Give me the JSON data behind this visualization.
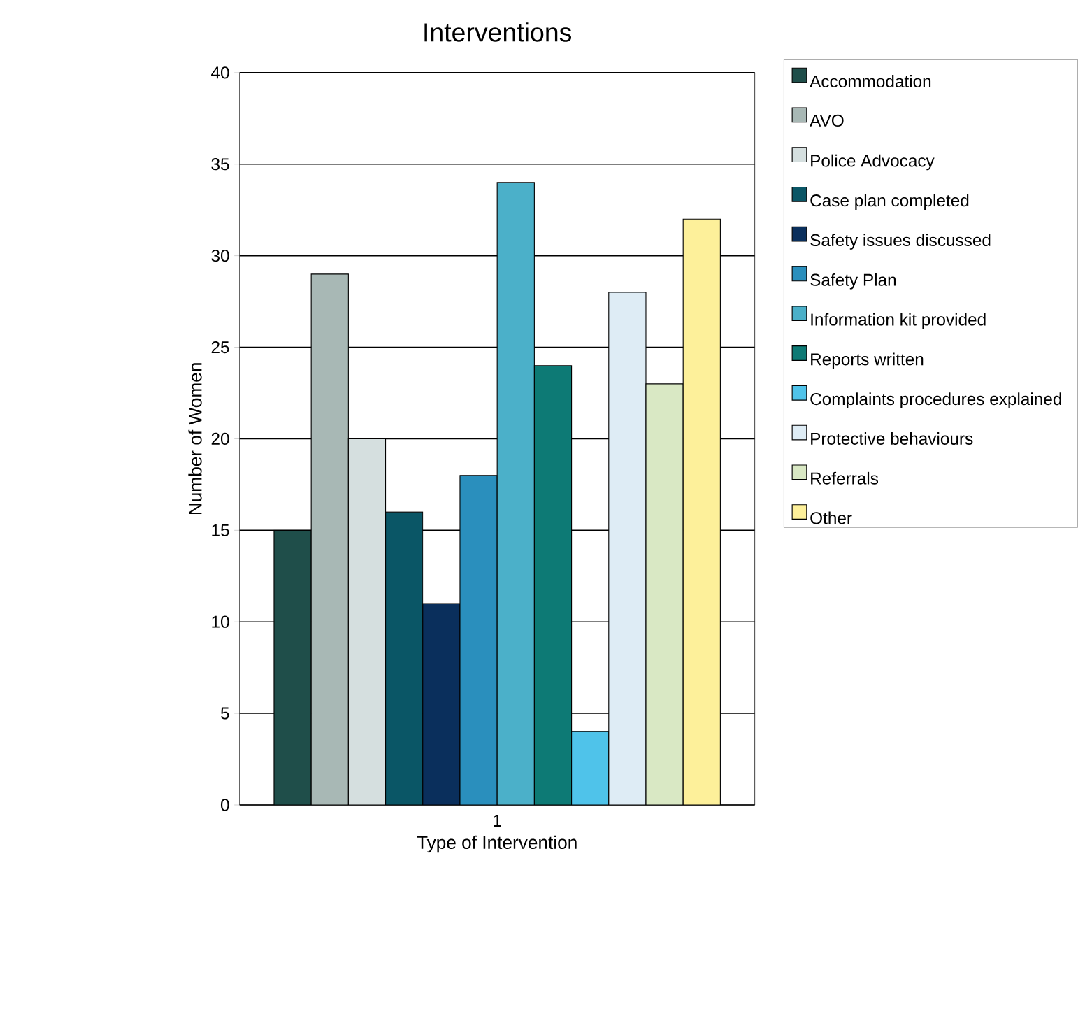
{
  "chart_data": {
    "type": "bar",
    "title": "Interventions",
    "xlabel": "Type of Intervention",
    "ylabel": "Number of Women",
    "categories": [
      "1"
    ],
    "series": [
      {
        "name": "Accommodation",
        "color": "#1f4e4a",
        "values": [
          15
        ]
      },
      {
        "name": "AVO",
        "color": "#a8b8b5",
        "values": [
          29
        ]
      },
      {
        "name": "Police Advocacy",
        "color": "#d5dfdf",
        "values": [
          20
        ]
      },
      {
        "name": "Case plan completed",
        "color": "#0a5666",
        "values": [
          16
        ]
      },
      {
        "name": "Safety issues discussed",
        "color": "#0a2f5c",
        "values": [
          11
        ]
      },
      {
        "name": "Safety Plan",
        "color": "#2a8fbd",
        "values": [
          18
        ]
      },
      {
        "name": "Information kit provided",
        "color": "#4bb0c9",
        "values": [
          34
        ]
      },
      {
        "name": "Reports written",
        "color": "#0d7a75",
        "values": [
          24
        ]
      },
      {
        "name": "Complaints procedures explained",
        "color": "#4fc3ea",
        "values": [
          4
        ]
      },
      {
        "name": "Protective behaviours",
        "color": "#deecf5",
        "values": [
          28
        ]
      },
      {
        "name": "Referrals",
        "color": "#d9e8c4",
        "values": [
          23
        ]
      },
      {
        "name": "Other",
        "color": "#fdf09a",
        "values": [
          32
        ]
      }
    ],
    "ylim": [
      0,
      40
    ],
    "yticks": [
      0,
      5,
      10,
      15,
      20,
      25,
      30,
      35,
      40
    ],
    "grid": "y",
    "legend": "right"
  }
}
